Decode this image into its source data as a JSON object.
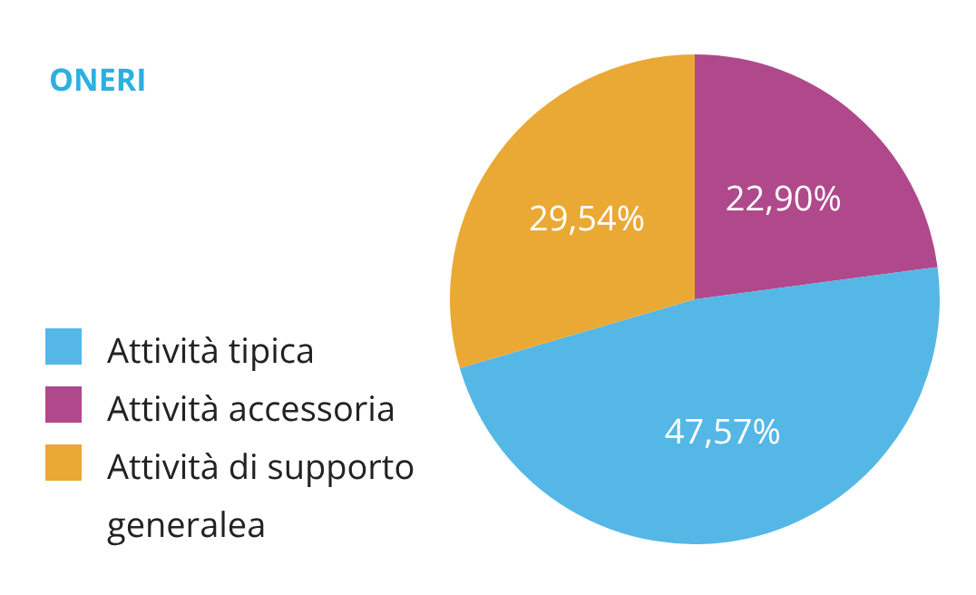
{
  "chart_data": {
    "type": "pie",
    "title": "ONERI",
    "categories": [
      "Attività accessoria",
      "Attività tipica",
      "Attività di supporto generalea"
    ],
    "values": [
      22.9,
      47.57,
      29.54
    ],
    "colors": [
      "#b0498c",
      "#55b7e6",
      "#eaa935"
    ],
    "value_labels": [
      "22,90%",
      "47,57%",
      "29,54%"
    ],
    "legend": "left"
  }
}
